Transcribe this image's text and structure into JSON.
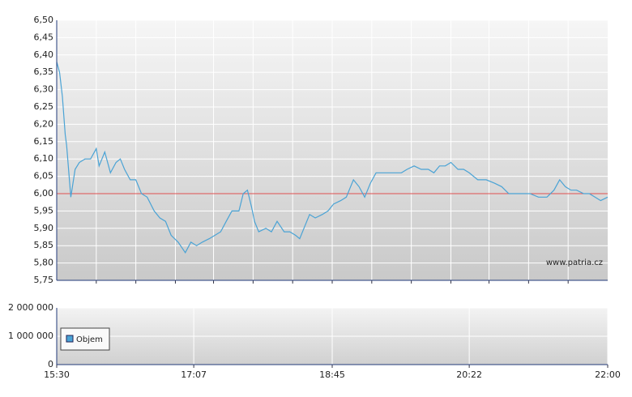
{
  "chart_data": [
    {
      "type": "line",
      "color": "#4aa3d5",
      "x": [
        930,
        932,
        934,
        936,
        937,
        940,
        943,
        946,
        950,
        954,
        958,
        960,
        964,
        968,
        972,
        975,
        978,
        982,
        986,
        990,
        994,
        999,
        1003,
        1007,
        1011,
        1016,
        1021,
        1025,
        1029,
        1033,
        1038,
        1042,
        1046,
        1050,
        1054,
        1059,
        1062,
        1065,
        1068,
        1070,
        1073,
        1078,
        1082,
        1086,
        1091,
        1095,
        1099,
        1102,
        1105,
        1109,
        1113,
        1118,
        1122,
        1126,
        1131,
        1135,
        1140,
        1144,
        1148,
        1152,
        1156,
        1160,
        1165,
        1170,
        1174,
        1178,
        1183,
        1188,
        1193,
        1197,
        1201,
        1205,
        1209,
        1214,
        1218,
        1222,
        1228,
        1234,
        1240,
        1245,
        1250,
        1254,
        1260,
        1265,
        1271,
        1277,
        1282,
        1286,
        1290,
        1294,
        1298,
        1303,
        1307,
        1311,
        1315,
        1320
      ],
      "values": [
        6.38,
        6.35,
        6.28,
        6.17,
        6.14,
        5.99,
        6.07,
        6.09,
        6.1,
        6.1,
        6.13,
        6.08,
        6.12,
        6.06,
        6.09,
        6.1,
        6.07,
        6.04,
        6.04,
        6.0,
        5.99,
        5.95,
        5.93,
        5.92,
        5.88,
        5.86,
        5.83,
        5.86,
        5.85,
        5.86,
        5.87,
        5.88,
        5.89,
        5.92,
        5.95,
        5.95,
        6.0,
        6.01,
        5.96,
        5.92,
        5.89,
        5.9,
        5.89,
        5.92,
        5.89,
        5.89,
        5.88,
        5.87,
        5.9,
        5.94,
        5.93,
        5.94,
        5.95,
        5.97,
        5.98,
        5.99,
        6.04,
        6.02,
        5.99,
        6.03,
        6.06,
        6.06,
        6.06,
        6.06,
        6.06,
        6.07,
        6.08,
        6.07,
        6.07,
        6.06,
        6.08,
        6.08,
        6.09,
        6.07,
        6.07,
        6.06,
        6.04,
        6.04,
        6.03,
        6.02,
        6.0,
        6.0,
        6.0,
        6.0,
        5.99,
        5.99,
        6.01,
        6.04,
        6.02,
        6.01,
        6.01,
        6.0,
        6.0,
        5.99,
        5.98,
        5.99
      ],
      "xlim": [
        930,
        1320
      ],
      "xgrid": [
        958,
        986,
        1014,
        1041,
        1069,
        1097,
        1125,
        1153,
        1181,
        1209,
        1236,
        1264,
        1292
      ],
      "ylim": [
        5.75,
        6.5
      ],
      "yticks": [
        {
          "value": 5.75,
          "label": "5,75"
        },
        {
          "value": 5.8,
          "label": "5,80"
        },
        {
          "value": 5.85,
          "label": "5,85"
        },
        {
          "value": 5.9,
          "label": "5,90"
        },
        {
          "value": 5.95,
          "label": "5,95"
        },
        {
          "value": 6.0,
          "label": "6,00"
        },
        {
          "value": 6.05,
          "label": "6,05"
        },
        {
          "value": 6.1,
          "label": "6,10"
        },
        {
          "value": 6.15,
          "label": "6,15"
        },
        {
          "value": 6.2,
          "label": "6,20"
        },
        {
          "value": 6.25,
          "label": "6,25"
        },
        {
          "value": 6.3,
          "label": "6,30"
        },
        {
          "value": 6.35,
          "label": "6,35"
        },
        {
          "value": 6.4,
          "label": "6,40"
        },
        {
          "value": 6.45,
          "label": "6,45"
        },
        {
          "value": 6.5,
          "label": "6,50"
        }
      ],
      "reference_line": {
        "value": 6.0,
        "color": "#e05050"
      },
      "annotation": "www.patria.cz",
      "grid": true
    },
    {
      "type": "bar",
      "series": [
        {
          "name": "Objem",
          "color": "#4aa3d5",
          "values": []
        }
      ],
      "xlim": [
        930,
        1320
      ],
      "xticks": [
        {
          "value": 930,
          "label": "15:30"
        },
        {
          "value": 1027,
          "label": "17:07"
        },
        {
          "value": 1125,
          "label": "18:45"
        },
        {
          "value": 1222,
          "label": "20:22"
        },
        {
          "value": 1320,
          "label": "22:00"
        }
      ],
      "ylim": [
        0,
        2000000
      ],
      "yticks": [
        0,
        {
          "value": 1000000,
          "label": "1 000 000"
        },
        {
          "value": 2000000,
          "label": "2 000 000"
        }
      ],
      "legend": "lower-left",
      "grid": true
    }
  ]
}
